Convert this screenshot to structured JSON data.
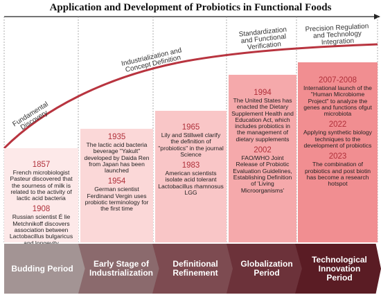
{
  "title": "Application and Development of Probiotics in Functional Foods",
  "stages": [
    "Fundamental Discovery",
    "Industrialization and Concept Definition",
    "Standardization and Functional Verification",
    "Precision Regulation and Technology Integration"
  ],
  "columns": [
    {
      "events": [
        {
          "year": "1857",
          "text": "French microbiologist Pasteur discovered that the sourness of milk is related to the activity of lactic acid bacteria"
        },
        {
          "year": "1908",
          "text": "Russian scientist É lie Metchnikoff discovers association between Lactobacillus bulgaricus and longevity"
        }
      ]
    },
    {
      "events": [
        {
          "year": "1935",
          "text": "The lactic acid bacteria beverage \"Yakult\" developed by Daida Ren from Japan has been launched"
        },
        {
          "year": "1954",
          "text": "German scientist Ferdinand Vergin uses probiotic terminology for the first time"
        }
      ]
    },
    {
      "events": [
        {
          "year": "1965",
          "text": "Lily and Stillwell clarify the definition of \"probiotics\" in the journal Science"
        },
        {
          "year": "1983",
          "text": "American scientists isolate acid tolerant Lactobacillus rhamnosus LGG"
        }
      ]
    },
    {
      "events": [
        {
          "year": "1994",
          "text": "The United States has enacted the Dietary Supplement Health and Education Act, which includes probiotics in the management of dietary supplements"
        },
        {
          "year": "2002",
          "text": "FAO/WHO Joint Release of Probiotic Evaluation Guidelines, Establishing Definition of 'Living Microorganisms'"
        }
      ]
    },
    {
      "events": [
        {
          "year": "2007-2008",
          "text": "International launch of the \"Human Microbiome Project\" to analyze the genes and functions ofgut microbiota"
        },
        {
          "year": "2022",
          "text": "Applying synthetic biology techniques to the development of probiotics"
        },
        {
          "year": "2023",
          "text": "The combination of probiotics and post biotin has become a research hotspot"
        }
      ]
    }
  ],
  "periods": [
    "Budding Period",
    "Early Stage of Industrialization",
    "Definitional Refinement",
    "Globalization Period",
    "Technological Innovation Period"
  ],
  "colors": {
    "curve": "#b8343f",
    "box1": "#fde9e9",
    "box2": "#fbd8d8",
    "box3": "#f9c6c7",
    "box4": "#f5a9ab",
    "box5": "#f18e91",
    "period1": "#a39494",
    "period2": "#8b6a6d",
    "period3": "#7d4b51",
    "period4": "#6c323a",
    "period5": "#5a1c24"
  }
}
